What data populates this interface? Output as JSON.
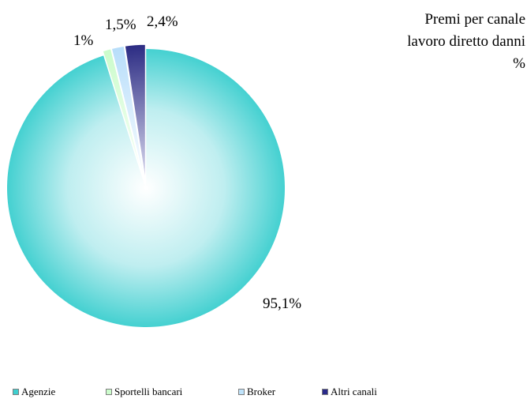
{
  "chart_data": {
    "type": "pie",
    "title_lines": [
      "Premi per canale",
      "lavoro diretto danni",
      "%"
    ],
    "categories": [
      "Agenzie",
      "Sportelli bancari",
      "Broker",
      "Altri canali"
    ],
    "values": [
      95.1,
      1.0,
      1.5,
      2.4
    ],
    "data_labels": [
      "95,1%",
      "1%",
      "1,5%",
      "2,4%"
    ],
    "exploded": [
      false,
      true,
      true,
      true
    ],
    "legend_position": "bottom",
    "colors": {
      "Agenzie": "#3ecfcf",
      "Sportelli bancari": "#ccfccc",
      "Broker": "#bfe3fb",
      "Altri canali": "#2a2a8a"
    }
  }
}
